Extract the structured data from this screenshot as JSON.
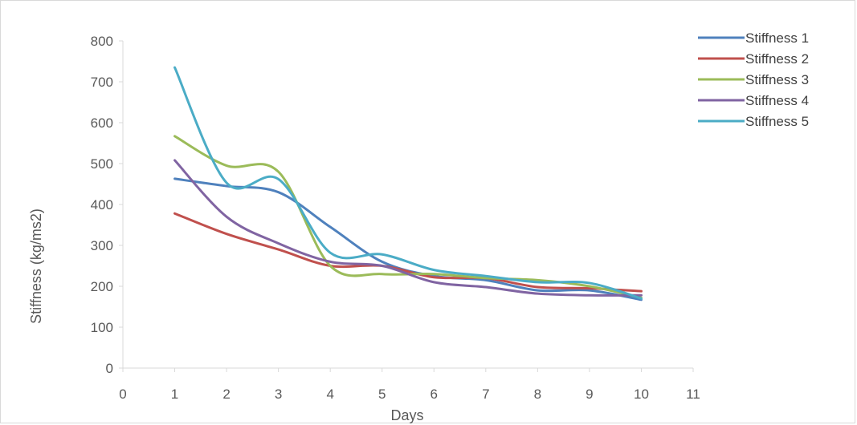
{
  "chart_data": {
    "type": "line",
    "title": "",
    "xlabel": "Days",
    "ylabel": "Stiffness (kg/ms2)",
    "xlim": [
      0,
      11
    ],
    "ylim": [
      0,
      800
    ],
    "xticks": [
      0,
      1,
      2,
      3,
      4,
      5,
      6,
      7,
      8,
      9,
      10,
      11
    ],
    "yticks": [
      0,
      100,
      200,
      300,
      400,
      500,
      600,
      700,
      800
    ],
    "grid": false,
    "legend_position": "right",
    "x": [
      1,
      2,
      3,
      4,
      5,
      6,
      7,
      8,
      9,
      10
    ],
    "series": [
      {
        "name": "Stiffness 1",
        "color": "#4f81bd",
        "values": [
          463,
          445,
          430,
          345,
          260,
          225,
          215,
          190,
          190,
          167
        ]
      },
      {
        "name": "Stiffness 2",
        "color": "#c0504d",
        "values": [
          378,
          328,
          290,
          250,
          250,
          222,
          220,
          198,
          195,
          188
        ]
      },
      {
        "name": "Stiffness 3",
        "color": "#9bbb59",
        "values": [
          567,
          495,
          480,
          250,
          230,
          230,
          220,
          215,
          200,
          172
        ]
      },
      {
        "name": "Stiffness 4",
        "color": "#8064a2",
        "values": [
          508,
          370,
          305,
          260,
          250,
          210,
          198,
          182,
          178,
          178
        ]
      },
      {
        "name": "Stiffness 5",
        "color": "#4bacc6",
        "values": [
          735,
          453,
          462,
          282,
          278,
          240,
          225,
          210,
          208,
          170
        ]
      }
    ]
  }
}
